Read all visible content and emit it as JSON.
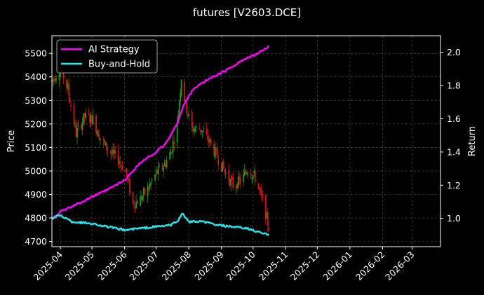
{
  "chart_data": {
    "type": "candlestick+line",
    "title": "futures [V2603.DCE]",
    "ylabel_left": "Price",
    "ylabel_right": "Return",
    "xlim": [
      "2025-03-24",
      "2026-03-28"
    ],
    "ylim_left": [
      4678,
      5575
    ],
    "ylim_right": [
      0.83,
      2.1
    ],
    "x_ticks": [
      "2025-04-01",
      "2025-05-01",
      "2025-06-01",
      "2025-07-01",
      "2025-08-01",
      "2025-09-01",
      "2025-10-01",
      "2025-11-01",
      "2025-12-01",
      "2026-01-01",
      "2026-02-01",
      "2026-03-01"
    ],
    "x_tick_labels": [
      "2025-04",
      "2025-05",
      "2025-06",
      "2025-07",
      "2025-08",
      "2025-09",
      "2025-10",
      "2025-11",
      "2025-12",
      "2026-01",
      "2026-02",
      "2026-03"
    ],
    "y_ticks_left": [
      4700,
      4800,
      4900,
      5000,
      5100,
      5200,
      5300,
      5400,
      5500
    ],
    "y_ticks_right": [
      1.0,
      1.2,
      1.4,
      1.6,
      1.8,
      2.0
    ],
    "y_tick_labels_left": [
      "4700",
      "4800",
      "4900",
      "5000",
      "5100",
      "5200",
      "5300",
      "5400",
      "5500"
    ],
    "y_tick_labels_right": [
      "1.0",
      "1.2",
      "1.4",
      "1.6",
      "1.8",
      "2.0"
    ],
    "grid": true,
    "legend_position": "top-left",
    "colors": {
      "background": "#000000",
      "up": "#1a9a1a",
      "down": "#e01010",
      "ai_strategy": "#ff00ff",
      "buy_and_hold": "#22e8f0",
      "grid": "#555555"
    },
    "price_anchors": [
      [
        "2025-03-24",
        5380
      ],
      [
        "2025-04-01",
        5440
      ],
      [
        "2025-04-08",
        5350
      ],
      [
        "2025-04-16",
        5160
      ],
      [
        "2025-04-24",
        5230
      ],
      [
        "2025-05-02",
        5220
      ],
      [
        "2025-05-10",
        5130
      ],
      [
        "2025-05-18",
        5080
      ],
      [
        "2025-05-26",
        5050
      ],
      [
        "2025-06-02",
        5000
      ],
      [
        "2025-06-09",
        4860
      ],
      [
        "2025-06-16",
        4880
      ],
      [
        "2025-06-24",
        4930
      ],
      [
        "2025-07-01",
        4990
      ],
      [
        "2025-07-08",
        5020
      ],
      [
        "2025-07-15",
        5080
      ],
      [
        "2025-07-21",
        5200
      ],
      [
        "2025-07-25",
        5400
      ],
      [
        "2025-07-29",
        5280
      ],
      [
        "2025-08-04",
        5180
      ],
      [
        "2025-08-12",
        5180
      ],
      [
        "2025-08-20",
        5130
      ],
      [
        "2025-08-28",
        5060
      ],
      [
        "2025-09-05",
        4990
      ],
      [
        "2025-09-12",
        4940
      ],
      [
        "2025-09-20",
        4960
      ],
      [
        "2025-09-26",
        5010
      ],
      [
        "2025-10-03",
        4970
      ],
      [
        "2025-10-10",
        4870
      ],
      [
        "2025-10-16",
        4760
      ]
    ],
    "series": [
      {
        "name": "AI Strategy",
        "anchors": [
          [
            "2025-03-24",
            1.0
          ],
          [
            "2025-04-01",
            1.04
          ],
          [
            "2025-04-15",
            1.08
          ],
          [
            "2025-05-01",
            1.13
          ],
          [
            "2025-05-15",
            1.17
          ],
          [
            "2025-06-01",
            1.23
          ],
          [
            "2025-06-15",
            1.33
          ],
          [
            "2025-07-01",
            1.4
          ],
          [
            "2025-07-10",
            1.45
          ],
          [
            "2025-07-20",
            1.56
          ],
          [
            "2025-07-27",
            1.68
          ],
          [
            "2025-08-05",
            1.78
          ],
          [
            "2025-08-20",
            1.84
          ],
          [
            "2025-09-05",
            1.89
          ],
          [
            "2025-09-20",
            1.95
          ],
          [
            "2025-10-01",
            1.98
          ],
          [
            "2025-10-10",
            2.01
          ],
          [
            "2025-10-16",
            2.04
          ]
        ]
      },
      {
        "name": "Buy-and-Hold",
        "anchors": [
          [
            "2025-03-24",
            1.0
          ],
          [
            "2025-04-01",
            1.02
          ],
          [
            "2025-04-12",
            0.98
          ],
          [
            "2025-05-01",
            0.97
          ],
          [
            "2025-05-15",
            0.95
          ],
          [
            "2025-06-01",
            0.93
          ],
          [
            "2025-06-15",
            0.94
          ],
          [
            "2025-07-01",
            0.95
          ],
          [
            "2025-07-15",
            0.96
          ],
          [
            "2025-07-22",
            0.99
          ],
          [
            "2025-07-26",
            1.03
          ],
          [
            "2025-08-01",
            0.98
          ],
          [
            "2025-08-15",
            0.98
          ],
          [
            "2025-08-28",
            0.96
          ],
          [
            "2025-09-10",
            0.95
          ],
          [
            "2025-09-25",
            0.94
          ],
          [
            "2025-10-05",
            0.92
          ],
          [
            "2025-10-16",
            0.9
          ]
        ]
      }
    ]
  }
}
